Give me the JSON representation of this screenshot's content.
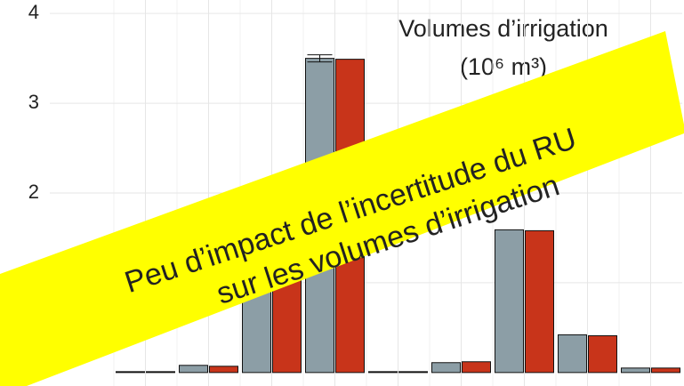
{
  "chart_data": {
    "type": "bar",
    "title": [
      "Volumes d’irrigation",
      "(10⁶ m³)"
    ],
    "annotation": [
      "Peu d’impact de l’incertitude du RU",
      "sur les volumes d’irrigation"
    ],
    "categories": [
      null,
      null,
      null,
      null,
      null,
      null,
      null,
      null,
      null
    ],
    "series": [
      {
        "color": "#8c9ea6",
        "values": [
          0.01,
          0.08,
          1.3,
          3.5,
          0.01,
          0.11,
          1.59,
          0.42,
          0.05
        ],
        "errors": [
          null,
          null,
          null,
          0.04,
          null,
          null,
          null,
          null,
          null
        ]
      },
      {
        "color": "#c8341a",
        "values": [
          0.01,
          0.07,
          1.3,
          3.49,
          0.01,
          0.12,
          1.58,
          0.41,
          0.05
        ]
      }
    ],
    "ylim": [
      -0.15,
      4.15
    ],
    "yticks": [
      1,
      2,
      3,
      4
    ],
    "grid": true
  }
}
